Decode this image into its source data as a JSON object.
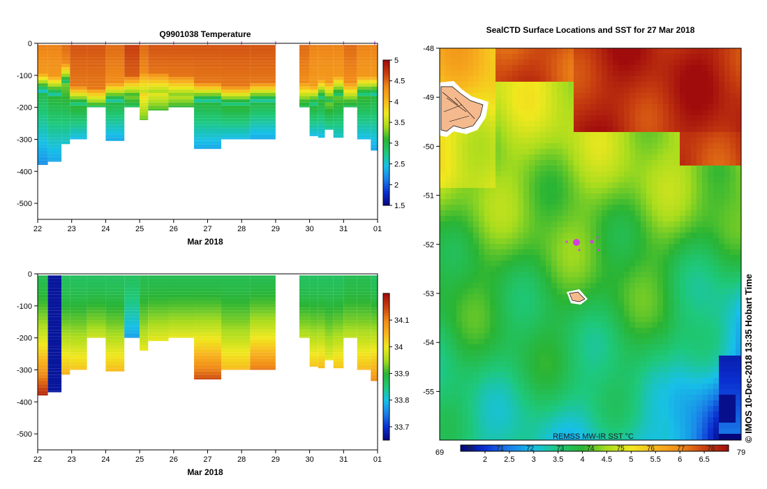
{
  "colors": {
    "ramp": [
      "#06067a",
      "#0a2fd0",
      "#1a7fe8",
      "#18c0e8",
      "#1ec87a",
      "#2ab434",
      "#a8dc1e",
      "#f0e81e",
      "#f8b41e",
      "#f08a18",
      "#c84010",
      "#a00c0c"
    ],
    "map_bg": "#ffffff",
    "missing": "#ffffff",
    "float_marker": "#d63ce0",
    "land": "#f5b98e"
  },
  "chart_data": [
    {
      "id": "temperature-section",
      "type": "heatmap",
      "title": "Q9901038  Temperature",
      "xlabel": "Mar 2018",
      "ylabel": "",
      "x_ticks": [
        "22",
        "23",
        "24",
        "25",
        "26",
        "27",
        "28",
        "29",
        "30",
        "31",
        "01"
      ],
      "xlim": [
        22,
        32
      ],
      "ylim": [
        -550,
        0
      ],
      "y_ticks": [
        0,
        -100,
        -200,
        -300,
        -400,
        -500
      ],
      "colorbar": {
        "min": 1.5,
        "max": 5.0,
        "ticks": [
          "1.5",
          "2",
          "2.5",
          "3",
          "3.5",
          "4",
          "4.5",
          "5"
        ]
      },
      "profile_markers": [
        23.0,
        24.0,
        25.0,
        26.0,
        27.0,
        28.0,
        29.0,
        30.0,
        31.0,
        32.0
      ],
      "profiles": [
        {
          "x0": 22.0,
          "x1": 22.3,
          "depth": 380,
          "top": 4.4,
          "thermo": 120,
          "bottom": 2.2
        },
        {
          "x0": 22.3,
          "x1": 22.7,
          "depth": 370,
          "top": 4.4,
          "thermo": 130,
          "bottom": 2.3
        },
        {
          "x0": 22.7,
          "x1": 22.95,
          "depth": 315,
          "top": 4.5,
          "thermo": 90,
          "bottom": 2.5
        },
        {
          "x0": 22.95,
          "x1": 23.45,
          "depth": 300,
          "top": 4.6,
          "thermo": 160,
          "bottom": 2.4
        },
        {
          "x0": 23.45,
          "x1": 24.0,
          "depth": 200,
          "top": 4.6,
          "thermo": 165,
          "bottom": 2.7
        },
        {
          "x0": 24.0,
          "x1": 24.55,
          "depth": 305,
          "top": 4.5,
          "thermo": 150,
          "bottom": 2.3
        },
        {
          "x0": 24.55,
          "x1": 25.0,
          "depth": 200,
          "top": 4.7,
          "thermo": 130,
          "bottom": 2.8
        },
        {
          "x0": 25.0,
          "x1": 25.25,
          "depth": 240,
          "top": 4.5,
          "thermo": 120,
          "bottom": 3.2
        },
        {
          "x0": 25.25,
          "x1": 25.85,
          "depth": 210,
          "top": 4.6,
          "thermo": 120,
          "bottom": 3.1
        },
        {
          "x0": 25.85,
          "x1": 26.6,
          "depth": 200,
          "top": 4.6,
          "thermo": 130,
          "bottom": 3.0
        },
        {
          "x0": 26.6,
          "x1": 27.4,
          "depth": 330,
          "top": 4.6,
          "thermo": 150,
          "bottom": 2.3
        },
        {
          "x0": 27.4,
          "x1": 28.25,
          "depth": 300,
          "top": 4.6,
          "thermo": 160,
          "bottom": 2.4
        },
        {
          "x0": 28.25,
          "x1": 29.0,
          "depth": 300,
          "top": 4.6,
          "thermo": 150,
          "bottom": 2.3
        },
        {
          "x0": 29.0,
          "x1": 29.7,
          "depth": null
        },
        {
          "x0": 29.7,
          "x1": 30.0,
          "depth": 200,
          "top": 4.5,
          "thermo": 150,
          "bottom": 2.8
        },
        {
          "x0": 30.0,
          "x1": 30.25,
          "depth": 290,
          "top": 4.4,
          "thermo": 160,
          "bottom": 2.4
        },
        {
          "x0": 30.25,
          "x1": 30.45,
          "depth": 295,
          "top": 4.4,
          "thermo": 140,
          "bottom": 2.4
        },
        {
          "x0": 30.45,
          "x1": 30.7,
          "depth": 270,
          "top": 4.4,
          "thermo": 150,
          "bottom": 2.6
        },
        {
          "x0": 30.7,
          "x1": 31.0,
          "depth": 295,
          "top": 4.4,
          "thermo": 130,
          "bottom": 2.5
        },
        {
          "x0": 31.0,
          "x1": 31.4,
          "depth": 200,
          "top": 4.5,
          "thermo": 150,
          "bottom": 2.8
        },
        {
          "x0": 31.4,
          "x1": 31.8,
          "depth": 300,
          "top": 4.4,
          "thermo": 130,
          "bottom": 2.4
        },
        {
          "x0": 31.8,
          "x1": 32.1,
          "depth": 335,
          "top": 4.4,
          "thermo": 130,
          "bottom": 2.3
        }
      ]
    },
    {
      "id": "salinity-section",
      "type": "heatmap",
      "title": "",
      "xlabel": "Mar 2018",
      "ylabel": "",
      "x_ticks": [
        "22",
        "23",
        "24",
        "25",
        "26",
        "27",
        "28",
        "29",
        "30",
        "31",
        "01"
      ],
      "xlim": [
        22,
        32
      ],
      "ylim": [
        -550,
        0
      ],
      "y_ticks": [
        0,
        -100,
        -200,
        -300,
        -400,
        -500
      ],
      "colorbar": {
        "min": 33.65,
        "max": 34.2,
        "ticks": [
          "33.7",
          "33.8",
          "33.9",
          "34",
          "34.1"
        ]
      },
      "profiles": [
        {
          "x0": 22.0,
          "x1": 22.3,
          "depth": 380,
          "top": 33.88,
          "bottom": 34.18
        },
        {
          "x0": 22.3,
          "x1": 22.7,
          "depth": 370,
          "top": 33.67,
          "bottom": 33.67
        },
        {
          "x0": 22.7,
          "x1": 22.95,
          "depth": 315,
          "top": 33.87,
          "bottom": 34.06
        },
        {
          "x0": 22.95,
          "x1": 23.45,
          "depth": 300,
          "top": 33.87,
          "bottom": 34.04
        },
        {
          "x0": 23.45,
          "x1": 24.0,
          "depth": 200,
          "top": 33.87,
          "bottom": 33.98
        },
        {
          "x0": 24.0,
          "x1": 24.55,
          "depth": 305,
          "top": 33.87,
          "bottom": 34.05
        },
        {
          "x0": 24.55,
          "x1": 25.0,
          "depth": 200,
          "top": 33.87,
          "bottom": 33.77
        },
        {
          "x0": 25.0,
          "x1": 25.25,
          "depth": 240,
          "top": 33.88,
          "bottom": 34.0
        },
        {
          "x0": 25.25,
          "x1": 25.85,
          "depth": 210,
          "top": 33.88,
          "bottom": 34.0
        },
        {
          "x0": 25.85,
          "x1": 26.6,
          "depth": 200,
          "top": 33.88,
          "bottom": 34.0
        },
        {
          "x0": 26.6,
          "x1": 27.4,
          "depth": 330,
          "top": 33.88,
          "bottom": 34.15
        },
        {
          "x0": 27.4,
          "x1": 28.25,
          "depth": 300,
          "top": 33.88,
          "bottom": 34.05
        },
        {
          "x0": 28.25,
          "x1": 29.0,
          "depth": 300,
          "top": 33.88,
          "bottom": 34.12
        },
        {
          "x0": 29.0,
          "x1": 29.7,
          "depth": null
        },
        {
          "x0": 29.7,
          "x1": 30.0,
          "depth": 200,
          "top": 33.87,
          "bottom": 33.97
        },
        {
          "x0": 30.0,
          "x1": 30.25,
          "depth": 290,
          "top": 33.87,
          "bottom": 34.04
        },
        {
          "x0": 30.25,
          "x1": 30.45,
          "depth": 295,
          "top": 33.87,
          "bottom": 34.05
        },
        {
          "x0": 30.45,
          "x1": 30.7,
          "depth": 270,
          "top": 33.87,
          "bottom": 34.0
        },
        {
          "x0": 30.7,
          "x1": 31.0,
          "depth": 295,
          "top": 33.87,
          "bottom": 34.04
        },
        {
          "x0": 31.0,
          "x1": 31.4,
          "depth": 200,
          "top": 33.88,
          "bottom": 33.97
        },
        {
          "x0": 31.4,
          "x1": 31.8,
          "depth": 300,
          "top": 33.88,
          "bottom": 34.05
        },
        {
          "x0": 31.8,
          "x1": 32.1,
          "depth": 335,
          "top": 33.87,
          "bottom": 34.1
        }
      ]
    },
    {
      "id": "sst-map",
      "type": "heatmap",
      "title": "SealCTD Surface Locations and SST for 27 Mar 2018",
      "xlabel": "",
      "ylabel": "",
      "ylim": [
        -56,
        -48
      ],
      "y_ticks": [
        "-48",
        "-49",
        "-50",
        "-51",
        "-52",
        "-53",
        "-54",
        "-55"
      ],
      "colorbar_F": {
        "min": 69,
        "max": 79,
        "ticks": [
          "69",
          "70",
          "71",
          "72",
          "73",
          "74",
          "75",
          "76",
          "77",
          "78",
          "79"
        ]
      },
      "colorbar_C": {
        "min": 1.5,
        "max": 7.0,
        "ticks": [
          "2",
          "2.5",
          "3",
          "3.5",
          "4",
          "4.5",
          "5",
          "5.5",
          "6",
          "6.5"
        ]
      },
      "source_label": "REMSS MW-IR SST °C",
      "float_positions": [
        {
          "lat": -51.98,
          "label": ""
        },
        {
          "lat": -51.95,
          "label": ""
        },
        {
          "lat": -51.93,
          "label": ""
        }
      ]
    }
  ],
  "credit": "© IMOS 10-Dec-2018 13:35 Hobart Time"
}
